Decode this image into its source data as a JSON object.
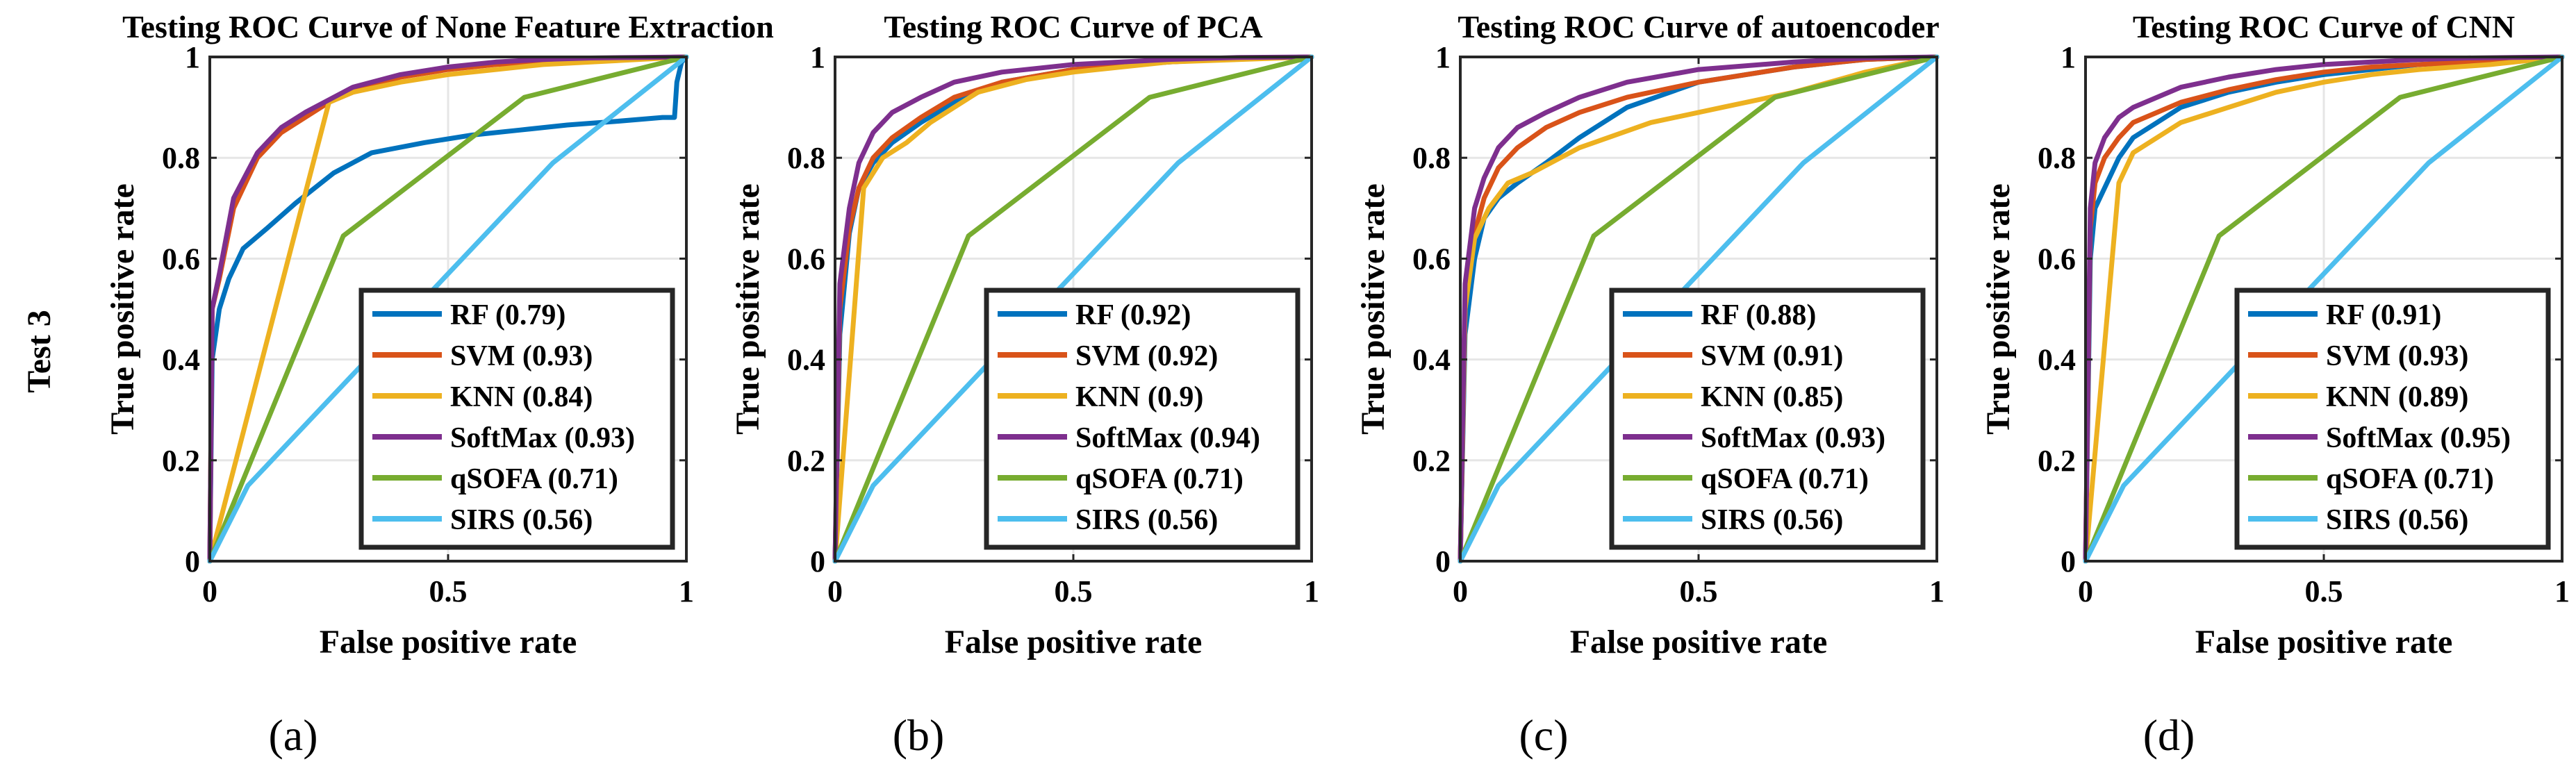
{
  "row_label": "Test 3",
  "shared": {
    "xlabel": "False positive rate",
    "ylabel": "True positive rate",
    "xlim": [
      0,
      1
    ],
    "ylim": [
      0,
      1
    ],
    "x_ticks": [
      "0",
      "0.5",
      "1"
    ],
    "y_ticks": [
      "0",
      "0.2",
      "0.4",
      "0.6",
      "0.8",
      "1"
    ],
    "grid": true,
    "legend_position": "bottom-right",
    "colors": {
      "RF": "#0072BD",
      "SVM": "#D95319",
      "KNN": "#EDB120",
      "SoftMax": "#7E2F8E",
      "qSOFA": "#77AC30",
      "SIRS": "#4DBEEE"
    }
  },
  "chart_data": [
    {
      "type": "line",
      "caption": "(a)",
      "title": "Testing ROC Curve of None Feature Extraction",
      "xlabel": "False positive rate",
      "ylabel": "True positive rate",
      "xlim": [
        0,
        1
      ],
      "ylim": [
        0,
        1
      ],
      "series": [
        {
          "name": "RF",
          "auc": "0.79",
          "legend": "RF (0.79)",
          "x": [
            0,
            0.005,
            0.02,
            0.04,
            0.07,
            0.12,
            0.18,
            0.26,
            0.34,
            0.45,
            0.55,
            0.65,
            0.75,
            0.85,
            0.95,
            0.975,
            0.98,
            0.99,
            1
          ],
          "y": [
            0,
            0.4,
            0.5,
            0.56,
            0.62,
            0.66,
            0.71,
            0.77,
            0.81,
            0.83,
            0.845,
            0.855,
            0.865,
            0.872,
            0.88,
            0.88,
            0.95,
            0.99,
            1
          ]
        },
        {
          "name": "SVM",
          "auc": "0.93",
          "legend": "SVM (0.93)",
          "x": [
            0,
            0.005,
            0.02,
            0.05,
            0.1,
            0.15,
            0.2,
            0.25,
            0.3,
            0.4,
            0.5,
            0.6,
            0.7,
            0.8,
            0.9,
            1
          ],
          "y": [
            0,
            0.5,
            0.56,
            0.7,
            0.8,
            0.85,
            0.88,
            0.91,
            0.93,
            0.96,
            0.975,
            0.985,
            0.99,
            0.995,
            0.998,
            1
          ]
        },
        {
          "name": "KNN",
          "auc": "0.84",
          "legend": "KNN (0.84)",
          "x": [
            0,
            0.25,
            0.3,
            0.4,
            0.5,
            0.6,
            0.7,
            0.8,
            0.9,
            1
          ],
          "y": [
            0,
            0.91,
            0.93,
            0.95,
            0.965,
            0.975,
            0.985,
            0.99,
            0.995,
            1
          ]
        },
        {
          "name": "SoftMax",
          "auc": "0.93",
          "legend": "SoftMax (0.93)",
          "x": [
            0,
            0.005,
            0.02,
            0.05,
            0.1,
            0.15,
            0.2,
            0.3,
            0.4,
            0.5,
            0.6,
            0.7,
            0.8,
            0.9,
            1
          ],
          "y": [
            0,
            0.5,
            0.57,
            0.72,
            0.81,
            0.86,
            0.89,
            0.94,
            0.965,
            0.98,
            0.99,
            0.995,
            0.998,
            0.999,
            1
          ]
        },
        {
          "name": "qSOFA",
          "auc": "0.71",
          "legend": "qSOFA (0.71)",
          "x": [
            0,
            0.28,
            0.66,
            1
          ],
          "y": [
            0,
            0.645,
            0.92,
            1
          ]
        },
        {
          "name": "SIRS",
          "auc": "0.56",
          "legend": "SIRS (0.56)",
          "x": [
            0,
            0.08,
            0.72,
            1
          ],
          "y": [
            0,
            0.15,
            0.79,
            1
          ]
        }
      ]
    },
    {
      "type": "line",
      "caption": "(b)",
      "title": "Testing ROC Curve of PCA",
      "xlabel": "False positive rate",
      "ylabel": "True positive rate",
      "xlim": [
        0,
        1
      ],
      "ylim": [
        0,
        1
      ],
      "series": [
        {
          "name": "RF",
          "auc": "0.92",
          "legend": "RF (0.92)",
          "x": [
            0,
            0.01,
            0.03,
            0.05,
            0.08,
            0.12,
            0.18,
            0.25,
            0.35,
            0.5,
            0.7,
            0.85,
            1
          ],
          "y": [
            0,
            0.45,
            0.65,
            0.74,
            0.79,
            0.83,
            0.87,
            0.91,
            0.95,
            0.975,
            0.99,
            0.997,
            1
          ]
        },
        {
          "name": "SVM",
          "auc": "0.92",
          "legend": "SVM (0.92)",
          "x": [
            0,
            0.01,
            0.03,
            0.05,
            0.08,
            0.12,
            0.18,
            0.25,
            0.35,
            0.5,
            0.7,
            0.85,
            1
          ],
          "y": [
            0,
            0.5,
            0.66,
            0.74,
            0.8,
            0.84,
            0.88,
            0.92,
            0.95,
            0.975,
            0.99,
            0.997,
            1
          ]
        },
        {
          "name": "KNN",
          "auc": "0.9",
          "legend": "KNN (0.9)",
          "x": [
            0,
            0.06,
            0.1,
            0.15,
            0.2,
            0.25,
            0.3,
            0.4,
            0.5,
            0.7,
            1
          ],
          "y": [
            0,
            0.74,
            0.8,
            0.83,
            0.87,
            0.9,
            0.93,
            0.955,
            0.97,
            0.99,
            1
          ]
        },
        {
          "name": "SoftMax",
          "auc": "0.94",
          "legend": "SoftMax (0.94)",
          "x": [
            0,
            0.01,
            0.03,
            0.05,
            0.08,
            0.12,
            0.18,
            0.25,
            0.35,
            0.5,
            0.7,
            0.85,
            1
          ],
          "y": [
            0,
            0.55,
            0.7,
            0.79,
            0.85,
            0.89,
            0.92,
            0.95,
            0.97,
            0.985,
            0.995,
            0.999,
            1
          ]
        },
        {
          "name": "qSOFA",
          "auc": "0.71",
          "legend": "qSOFA (0.71)",
          "x": [
            0,
            0.28,
            0.66,
            1
          ],
          "y": [
            0,
            0.645,
            0.92,
            1
          ]
        },
        {
          "name": "SIRS",
          "auc": "0.56",
          "legend": "SIRS (0.56)",
          "x": [
            0,
            0.08,
            0.72,
            1
          ],
          "y": [
            0,
            0.15,
            0.79,
            1
          ]
        }
      ]
    },
    {
      "type": "line",
      "caption": "(c)",
      "title": "Testing ROC Curve of autoencoder",
      "xlabel": "False positive rate",
      "ylabel": "True positive rate",
      "xlim": [
        0,
        1
      ],
      "ylim": [
        0,
        1
      ],
      "series": [
        {
          "name": "RF",
          "auc": "0.88",
          "legend": "RF (0.88)",
          "x": [
            0,
            0.01,
            0.03,
            0.05,
            0.08,
            0.12,
            0.18,
            0.25,
            0.35,
            0.5,
            0.7,
            0.85,
            1
          ],
          "y": [
            0,
            0.45,
            0.6,
            0.68,
            0.72,
            0.75,
            0.79,
            0.84,
            0.9,
            0.95,
            0.98,
            0.995,
            1
          ]
        },
        {
          "name": "SVM",
          "auc": "0.91",
          "legend": "SVM (0.91)",
          "x": [
            0,
            0.01,
            0.03,
            0.05,
            0.08,
            0.12,
            0.18,
            0.25,
            0.35,
            0.5,
            0.7,
            0.85,
            1
          ],
          "y": [
            0,
            0.5,
            0.65,
            0.72,
            0.78,
            0.82,
            0.86,
            0.89,
            0.92,
            0.95,
            0.98,
            0.995,
            1
          ]
        },
        {
          "name": "KNN",
          "auc": "0.85",
          "legend": "KNN (0.85)",
          "x": [
            0,
            0.01,
            0.03,
            0.06,
            0.1,
            0.15,
            0.25,
            0.4,
            0.55,
            0.7,
            0.85,
            1
          ],
          "y": [
            0,
            0.5,
            0.64,
            0.7,
            0.75,
            0.77,
            0.82,
            0.87,
            0.9,
            0.93,
            0.97,
            1
          ]
        },
        {
          "name": "SoftMax",
          "auc": "0.93",
          "legend": "SoftMax (0.93)",
          "x": [
            0,
            0.01,
            0.03,
            0.05,
            0.08,
            0.12,
            0.18,
            0.25,
            0.35,
            0.5,
            0.7,
            0.85,
            1
          ],
          "y": [
            0,
            0.55,
            0.7,
            0.76,
            0.82,
            0.86,
            0.89,
            0.92,
            0.95,
            0.975,
            0.99,
            0.998,
            1
          ]
        },
        {
          "name": "qSOFA",
          "auc": "0.71",
          "legend": "qSOFA (0.71)",
          "x": [
            0,
            0.28,
            0.66,
            1
          ],
          "y": [
            0,
            0.645,
            0.92,
            1
          ]
        },
        {
          "name": "SIRS",
          "auc": "0.56",
          "legend": "SIRS (0.56)",
          "x": [
            0,
            0.08,
            0.72,
            1
          ],
          "y": [
            0,
            0.15,
            0.79,
            1
          ]
        }
      ]
    },
    {
      "type": "line",
      "caption": "(d)",
      "title": "Testing ROC Curve of CNN",
      "xlabel": "False positive rate",
      "ylabel": "True positive rate",
      "xlim": [
        0,
        1
      ],
      "ylim": [
        0,
        1
      ],
      "series": [
        {
          "name": "RF",
          "auc": "0.91",
          "legend": "RF (0.91)",
          "x": [
            0,
            0.01,
            0.02,
            0.04,
            0.07,
            0.1,
            0.15,
            0.2,
            0.3,
            0.4,
            0.5,
            0.6,
            0.7,
            0.8,
            0.9,
            1
          ],
          "y": [
            0,
            0.6,
            0.7,
            0.74,
            0.8,
            0.84,
            0.87,
            0.9,
            0.93,
            0.95,
            0.965,
            0.975,
            0.985,
            0.99,
            0.995,
            1
          ]
        },
        {
          "name": "SVM",
          "auc": "0.93",
          "legend": "SVM (0.93)",
          "x": [
            0,
            0.01,
            0.02,
            0.04,
            0.07,
            0.1,
            0.15,
            0.2,
            0.3,
            0.4,
            0.5,
            0.6,
            0.7,
            0.8,
            0.9,
            1
          ],
          "y": [
            0,
            0.66,
            0.75,
            0.8,
            0.84,
            0.87,
            0.89,
            0.91,
            0.935,
            0.955,
            0.97,
            0.98,
            0.985,
            0.99,
            0.995,
            1
          ]
        },
        {
          "name": "KNN",
          "auc": "0.89",
          "legend": "KNN (0.89)",
          "x": [
            0,
            0.07,
            0.1,
            0.15,
            0.2,
            0.3,
            0.4,
            0.5,
            0.6,
            0.7,
            0.85,
            1
          ],
          "y": [
            0,
            0.75,
            0.81,
            0.84,
            0.87,
            0.9,
            0.93,
            0.95,
            0.965,
            0.975,
            0.985,
            1
          ]
        },
        {
          "name": "SoftMax",
          "auc": "0.95",
          "legend": "SoftMax (0.95)",
          "x": [
            0,
            0.01,
            0.02,
            0.04,
            0.07,
            0.1,
            0.15,
            0.2,
            0.3,
            0.4,
            0.5,
            0.6,
            0.7,
            0.8,
            0.9,
            1
          ],
          "y": [
            0,
            0.7,
            0.79,
            0.84,
            0.88,
            0.9,
            0.92,
            0.94,
            0.96,
            0.975,
            0.985,
            0.99,
            0.995,
            0.998,
            0.999,
            1
          ]
        },
        {
          "name": "qSOFA",
          "auc": "0.71",
          "legend": "qSOFA (0.71)",
          "x": [
            0,
            0.28,
            0.66,
            1
          ],
          "y": [
            0,
            0.645,
            0.92,
            1
          ]
        },
        {
          "name": "SIRS",
          "auc": "0.56",
          "legend": "SIRS (0.56)",
          "x": [
            0,
            0.08,
            0.72,
            1
          ],
          "y": [
            0,
            0.15,
            0.79,
            1
          ]
        }
      ]
    }
  ]
}
